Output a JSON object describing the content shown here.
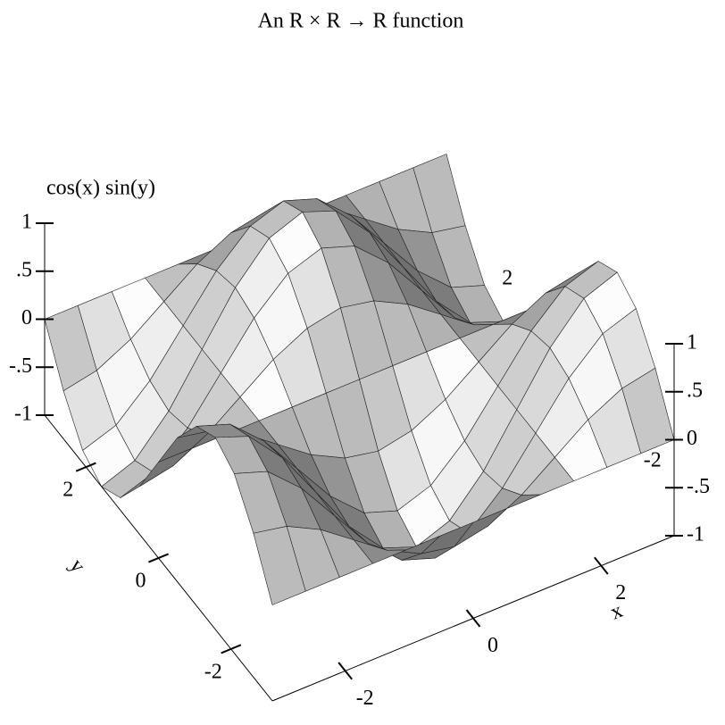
{
  "chart_data": {
    "type": "surface3d",
    "title": "An R × R →  R function",
    "xlabel": "x",
    "ylabel": "y",
    "zlabel": "cos(x) sin(y)",
    "xlim": [
      -3.14,
      3.14
    ],
    "ylim": [
      -3.14,
      3.14
    ],
    "zlim": [
      -1,
      1
    ],
    "xticks": [
      -2,
      0,
      2
    ],
    "yticks": [
      -2,
      0,
      2
    ],
    "zticks": [
      -1,
      {
        "value": -0.5,
        "label": "-.5"
      },
      0,
      {
        "value": 0.5,
        "label": ".5"
      },
      1
    ],
    "x": [
      -3.14,
      -2.62,
      -2.09,
      -1.57,
      -1.05,
      -0.52,
      0,
      0.52,
      1.05,
      1.57,
      2.09,
      2.62,
      3.14
    ],
    "y": [
      -3.14,
      -2.62,
      -2.09,
      -1.57,
      -1.05,
      -0.52,
      0,
      0.52,
      1.05,
      1.57,
      2.09,
      2.62,
      3.14
    ],
    "z": [
      [
        0,
        0,
        0,
        0,
        0,
        0,
        0,
        0,
        0,
        0,
        0,
        0,
        0
      ],
      [
        0.5,
        0.43,
        0.25,
        0,
        -0.25,
        -0.43,
        -0.5,
        -0.43,
        -0.25,
        0,
        0.25,
        0.43,
        0.5
      ],
      [
        0.87,
        0.75,
        0.43,
        0,
        -0.43,
        -0.75,
        -0.87,
        -0.75,
        -0.43,
        0,
        0.43,
        0.75,
        0.87
      ],
      [
        1,
        0.87,
        0.5,
        0,
        -0.5,
        -0.87,
        -1,
        -0.87,
        -0.5,
        0,
        0.5,
        0.87,
        1
      ],
      [
        0.87,
        0.75,
        0.43,
        0,
        -0.43,
        -0.75,
        -0.87,
        -0.75,
        -0.43,
        0,
        0.43,
        0.75,
        0.87
      ],
      [
        0.5,
        0.43,
        0.25,
        0,
        -0.25,
        -0.43,
        -0.5,
        -0.43,
        -0.25,
        0,
        0.25,
        0.43,
        0.5
      ],
      [
        0,
        0,
        0,
        0,
        0,
        0,
        0,
        0,
        0,
        0,
        0,
        0,
        0
      ],
      [
        -0.5,
        -0.43,
        -0.25,
        0,
        0.25,
        0.43,
        0.5,
        0.43,
        0.25,
        0,
        -0.25,
        -0.43,
        -0.5
      ],
      [
        -0.87,
        -0.75,
        -0.43,
        0,
        0.43,
        0.75,
        0.87,
        0.75,
        0.43,
        0,
        -0.43,
        -0.75,
        -0.87
      ],
      [
        -1,
        -0.87,
        -0.5,
        0,
        0.5,
        0.87,
        1,
        0.87,
        0.5,
        0,
        -0.5,
        -0.87,
        -1
      ],
      [
        -0.87,
        -0.75,
        -0.43,
        0,
        0.43,
        0.75,
        0.87,
        0.75,
        0.43,
        0,
        -0.43,
        -0.75,
        -0.87
      ],
      [
        -0.5,
        -0.43,
        -0.25,
        0,
        0.25,
        0.43,
        0.5,
        0.43,
        0.25,
        0,
        -0.25,
        -0.43,
        -0.5
      ],
      [
        0,
        0,
        0,
        0,
        0,
        0,
        0,
        0,
        0,
        0,
        0,
        0,
        0
      ]
    ]
  }
}
